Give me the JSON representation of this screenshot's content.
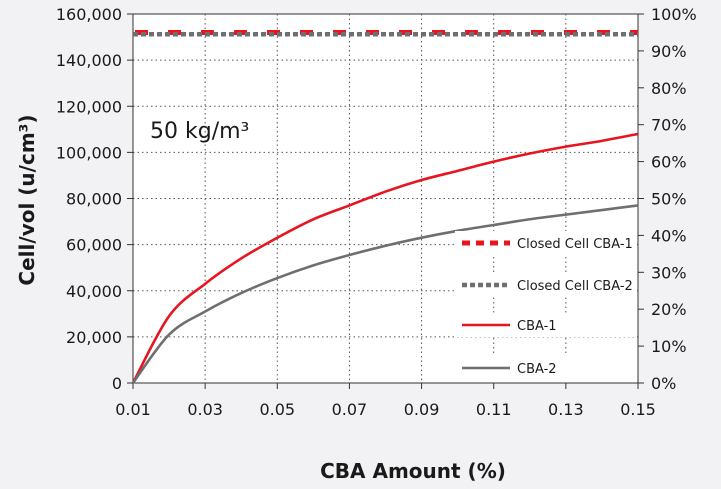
{
  "chart_data": {
    "type": "line",
    "xlabel": "CBA Amount (%)",
    "ylabel": "Cell/vol (u/cm³)",
    "annotation": "50 kg/m³",
    "xlim": [
      0.01,
      0.15
    ],
    "ylim": [
      0,
      160000
    ],
    "y2lim": [
      0,
      100
    ],
    "x_ticks": [
      "0.01",
      "0.03",
      "0.05",
      "0.07",
      "0.09",
      "0.11",
      "0.13",
      "0.15"
    ],
    "y_ticks": [
      "0",
      "20,000",
      "40,000",
      "60,000",
      "80,000",
      "100,000",
      "120,000",
      "140,000",
      "160,000"
    ],
    "y2_ticks": [
      "0%",
      "10%",
      "20%",
      "30%",
      "40%",
      "50%",
      "60%",
      "70%",
      "80%",
      "90%",
      "100%"
    ],
    "grid": true,
    "legend_position": "right",
    "series": [
      {
        "name": "Closed Cell CBA-1",
        "axis": "right",
        "style": "dashed",
        "color": "#e8141e",
        "x": [
          0.01,
          0.15
        ],
        "y": [
          95,
          95
        ]
      },
      {
        "name": "Closed Cell CBA-2",
        "axis": "right",
        "style": "dotted",
        "color": "#6f6f73",
        "x": [
          0.01,
          0.15
        ],
        "y": [
          94.5,
          94.5
        ]
      },
      {
        "name": "CBA-1",
        "axis": "left",
        "style": "solid",
        "color": "#e8141e",
        "x": [
          0.01,
          0.02,
          0.03,
          0.04,
          0.05,
          0.06,
          0.07,
          0.08,
          0.09,
          0.1,
          0.11,
          0.12,
          0.13,
          0.14,
          0.15
        ],
        "y": [
          0,
          29000,
          43000,
          54000,
          63000,
          71000,
          77000,
          83000,
          88000,
          92000,
          96000,
          99500,
          102500,
          105000,
          108000
        ]
      },
      {
        "name": "CBA-2",
        "axis": "left",
        "style": "solid",
        "color": "#6f6f73",
        "x": [
          0.01,
          0.02,
          0.03,
          0.04,
          0.05,
          0.06,
          0.07,
          0.08,
          0.09,
          0.1,
          0.11,
          0.12,
          0.13,
          0.14,
          0.15
        ],
        "y": [
          0,
          21000,
          31000,
          39000,
          45500,
          51000,
          55500,
          59500,
          63000,
          66000,
          68500,
          71000,
          73000,
          75000,
          77000
        ]
      }
    ]
  }
}
